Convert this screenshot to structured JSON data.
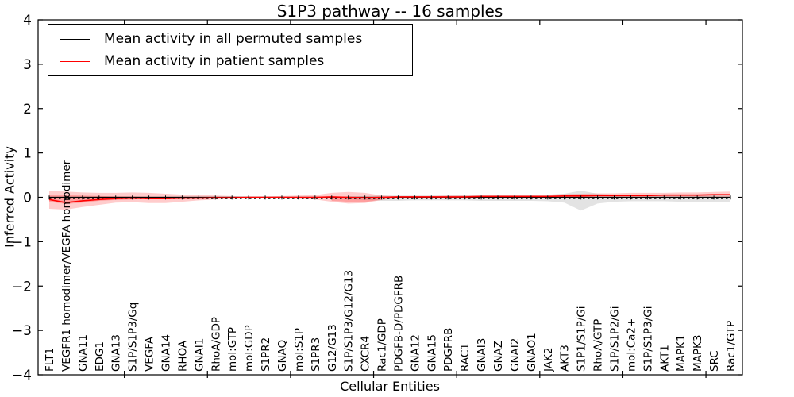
{
  "figure": {
    "title": "S1P3 pathway -- 16 samples",
    "xlabel": "Cellular Entities",
    "ylabel": "Inferred Activity",
    "background": "#ffffff",
    "axis_color": "#000000"
  },
  "legend": {
    "position": "upper-left",
    "entries": [
      {
        "label": "Mean activity in all permuted samples",
        "color": "#000000"
      },
      {
        "label": "Mean activity in patient samples",
        "color": "#ff0000"
      }
    ]
  },
  "chart_data": {
    "type": "line",
    "title": "S1P3 pathway -- 16 samples",
    "xlabel": "Cellular Entities",
    "ylabel": "Inferred Activity",
    "ylim": [
      -4,
      4
    ],
    "grid": false,
    "legend_position": "upper left",
    "y_ticks": [
      {
        "v": 4,
        "label": "4"
      },
      {
        "v": 3,
        "label": "3"
      },
      {
        "v": 2,
        "label": "2"
      },
      {
        "v": 1,
        "label": "1"
      },
      {
        "v": 0,
        "label": "0"
      },
      {
        "v": -1,
        "label": "−1"
      },
      {
        "v": -2,
        "label": "−2"
      },
      {
        "v": -3,
        "label": "−3"
      },
      {
        "v": -4,
        "label": "−4"
      }
    ],
    "x_major_tick_indices": [
      5,
      10,
      15,
      20,
      25,
      30,
      35,
      40
    ],
    "categories": [
      "FLT1",
      "VEGFR1 homodimer/VEGFA homodimer",
      "GNA11",
      "EDG1",
      "GNA13",
      "S1P/S1P3/Gq",
      "VEGFA",
      "GNA14",
      "RHOA",
      "GNAI1",
      "RhoA/GDP",
      "mol:GTP",
      "mol:GDP",
      "S1PR2",
      "GNAQ",
      "mol:S1P",
      "S1PR3",
      "G12/G13",
      "S1P/S1P3/G12/G13",
      "CXCR4",
      "Rac1/GDP",
      "PDGFB-D/PDGFRB",
      "GNA12",
      "GNA15",
      "PDGFRB",
      "RAC1",
      "GNAI3",
      "GNAZ",
      "GNAI2",
      "GNAO1",
      "JAK2",
      "AKT3",
      "S1P1/S1P/Gi",
      "RhoA/GTP",
      "S1P/S1P2/Gi",
      "mol:Ca2+",
      "S1P/S1P3/Gi",
      "AKT1",
      "MAPK1",
      "MAPK3",
      "SRC",
      "Rac1/GTP"
    ],
    "series": [
      {
        "name": "Mean activity in all permuted samples",
        "color": "#000000",
        "style": "solid-with-tick-markers",
        "values": [
          0,
          0,
          0,
          0,
          0,
          0,
          0,
          0,
          0,
          0,
          0,
          0,
          0,
          0,
          0,
          0,
          0,
          0,
          0,
          0,
          0,
          0,
          0,
          0,
          0,
          0,
          0,
          0,
          0,
          0,
          0,
          0,
          0,
          0,
          0,
          0,
          0,
          0,
          0,
          0,
          0,
          0
        ]
      },
      {
        "name": "Mean activity in patient samples",
        "color": "#ff0000",
        "style": "solid",
        "values": [
          -0.05,
          -0.12,
          -0.08,
          -0.05,
          -0.03,
          -0.02,
          -0.03,
          -0.03,
          -0.02,
          -0.02,
          -0.01,
          -0.01,
          0,
          0,
          0,
          0,
          0,
          0.01,
          0,
          -0.01,
          0,
          0.01,
          0.01,
          0.01,
          0.01,
          0.01,
          0.02,
          0.02,
          0.02,
          0.02,
          0.02,
          0.03,
          0.03,
          0.04,
          0.04,
          0.04,
          0.04,
          0.05,
          0.05,
          0.05,
          0.06,
          0.06
        ]
      }
    ],
    "bands": [
      {
        "name": "permuted-samples-range",
        "color": "rgba(0,0,0,0.11)",
        "upper": [
          0.02,
          0.02,
          0.02,
          0.02,
          0.02,
          0.02,
          0.02,
          0.02,
          0.02,
          0.02,
          0.02,
          0.02,
          0.01,
          0.01,
          0.01,
          0.01,
          0.01,
          0.01,
          0.02,
          0.03,
          0.04,
          0.04,
          0.04,
          0.04,
          0.04,
          0.05,
          0.05,
          0.05,
          0.05,
          0.05,
          0.06,
          0.08,
          0.15,
          0.08,
          0.06,
          0.06,
          0.06,
          0.06,
          0.06,
          0.06,
          0.06,
          0.06
        ],
        "lower": [
          -0.03,
          -0.03,
          -0.03,
          -0.03,
          -0.02,
          -0.02,
          -0.02,
          -0.02,
          -0.02,
          -0.02,
          -0.02,
          -0.02,
          -0.01,
          -0.01,
          -0.01,
          -0.01,
          -0.01,
          -0.02,
          -0.04,
          -0.06,
          -0.08,
          -0.08,
          -0.07,
          -0.07,
          -0.07,
          -0.07,
          -0.08,
          -0.08,
          -0.08,
          -0.08,
          -0.09,
          -0.12,
          -0.3,
          -0.14,
          -0.1,
          -0.09,
          -0.09,
          -0.09,
          -0.1,
          -0.1,
          -0.1,
          -0.1
        ]
      },
      {
        "name": "patient-samples-range",
        "color": "rgba(255,0,0,0.20)",
        "upper": [
          0.14,
          0.13,
          0.11,
          0.1,
          0.1,
          0.11,
          0.1,
          0.08,
          0.06,
          0.05,
          0.04,
          0.03,
          0.02,
          0.02,
          0.03,
          0.04,
          0.05,
          0.1,
          0.12,
          0.1,
          0.04,
          0.02,
          0.03,
          0.03,
          0.04,
          0.04,
          0.05,
          0.05,
          0.05,
          0.06,
          0.06,
          0.07,
          0.08,
          0.09,
          0.09,
          0.1,
          0.1,
          0.1,
          0.11,
          0.11,
          0.12,
          0.13
        ],
        "lower": [
          -0.26,
          -0.28,
          -0.22,
          -0.17,
          -0.12,
          -0.11,
          -0.13,
          -0.13,
          -0.1,
          -0.07,
          -0.05,
          -0.04,
          -0.03,
          -0.03,
          -0.03,
          -0.04,
          -0.05,
          -0.1,
          -0.14,
          -0.13,
          -0.06,
          -0.02,
          -0.01,
          -0.01,
          -0.01,
          -0.01,
          -0.01,
          -0.01,
          -0.01,
          -0.01,
          -0.01,
          -0.01,
          -0.01,
          -0.01,
          -0.01,
          -0.01,
          -0.01,
          -0.01,
          -0.01,
          -0.01,
          -0.01,
          0.0
        ]
      },
      {
        "name": "patient-samples-inner-range",
        "color": "rgba(255,0,0,0.22)",
        "upper": [
          0.06,
          0.05,
          0.04,
          0.03,
          0.02,
          0.02,
          0.01,
          null,
          null,
          null,
          null,
          null,
          null,
          null,
          null,
          null,
          null,
          -0.02,
          -0.02,
          -0.02,
          -0.02,
          null,
          null,
          null,
          null,
          null,
          null,
          null,
          null,
          null,
          null,
          null,
          null,
          null,
          null,
          null,
          null,
          null,
          null,
          null,
          null,
          null
        ],
        "lower": [
          -0.1,
          -0.15,
          -0.12,
          -0.08,
          -0.06,
          -0.05,
          -0.03,
          null,
          null,
          null,
          null,
          null,
          null,
          null,
          null,
          null,
          null,
          -0.08,
          -0.1,
          -0.11,
          -0.05,
          null,
          null,
          null,
          null,
          null,
          null,
          null,
          null,
          null,
          null,
          null,
          null,
          null,
          null,
          null,
          null,
          null,
          null,
          null,
          null,
          null
        ]
      }
    ],
    "zero_reference_line": {
      "style": "dashed",
      "color": "#000000",
      "v": -0.03
    }
  }
}
